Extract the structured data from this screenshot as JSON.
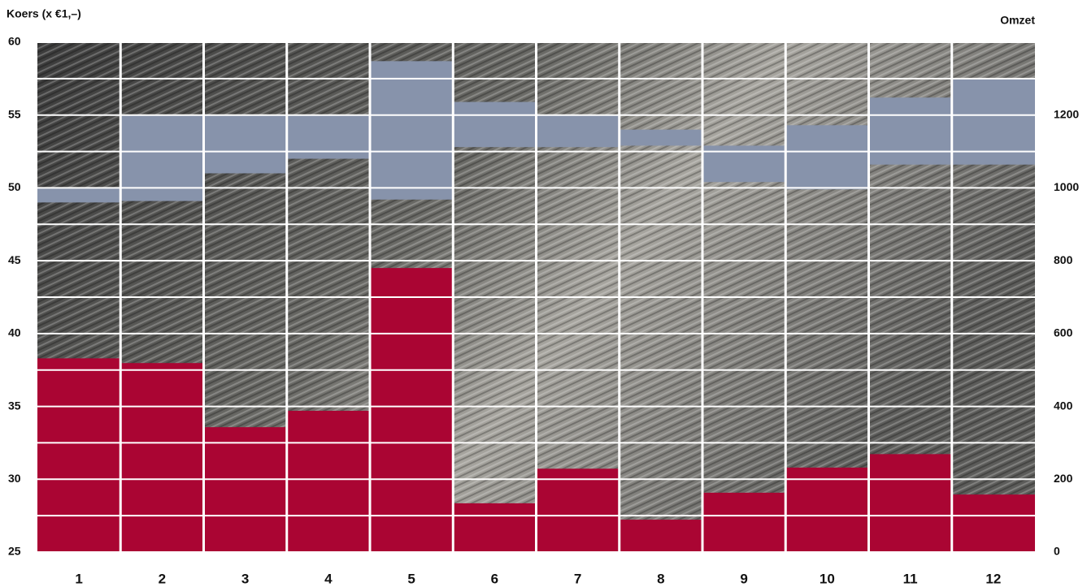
{
  "chart_data": {
    "type": "range-bar",
    "y_label": "Koers (x €1,–)",
    "y2_label": "Omzet",
    "categories": [
      "1",
      "2",
      "3",
      "4",
      "5",
      "6",
      "7",
      "8",
      "9",
      "10",
      "11",
      "12"
    ],
    "price_range": {
      "color": "#8793ab",
      "low": [
        49.0,
        49.1,
        51.0,
        52.0,
        49.2,
        52.8,
        52.8,
        52.9,
        50.4,
        49.9,
        51.6,
        51.6
      ],
      "high": [
        50.0,
        55.0,
        55.0,
        55.0,
        58.7,
        55.9,
        55.0,
        54.0,
        52.9,
        54.3,
        56.2,
        57.5
      ]
    },
    "revenue": {
      "color": "#aa0533",
      "axis": "y2",
      "values": [
        532,
        519,
        343,
        388,
        780,
        134,
        229,
        89,
        163,
        232,
        269,
        158
      ]
    },
    "ylim": [
      25,
      60
    ],
    "yticks": [
      25,
      30,
      35,
      40,
      45,
      50,
      55,
      60
    ],
    "y2lim": [
      0,
      1400
    ],
    "y2ticks": [
      0,
      200,
      400,
      600,
      800,
      1000,
      1200
    ],
    "grid": true
  }
}
